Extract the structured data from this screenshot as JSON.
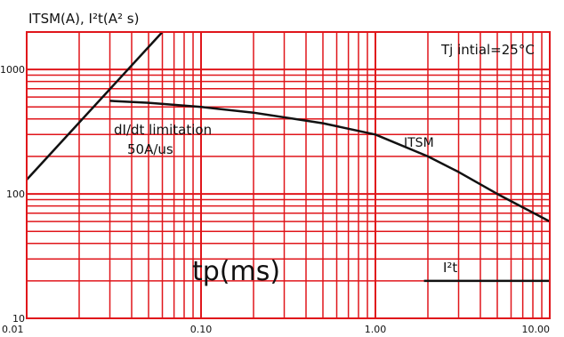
{
  "chart_data": {
    "type": "line",
    "title": "ITSM(A),  I²t(A² s)",
    "xlabel": "tp(ms)",
    "ylabel": "",
    "x_scale": "log",
    "y_scale": "log",
    "xlim": [
      0.01,
      10
    ],
    "ylim": [
      10,
      2000
    ],
    "x_ticks": [
      "0.01",
      "0.10",
      "1.00",
      "10.00"
    ],
    "y_ticks": [
      "10",
      "100",
      "1000"
    ],
    "grid": true,
    "grid_color": "#e0161b",
    "line_color": "#111111",
    "series": [
      {
        "name": "ITSM",
        "x": [
          0.03,
          0.05,
          0.1,
          0.2,
          0.5,
          1.0,
          2.0,
          3.0,
          5.0,
          10.0
        ],
        "y": [
          560,
          540,
          500,
          450,
          370,
          300,
          200,
          150,
          100,
          60
        ]
      },
      {
        "name": "I²t",
        "x": [
          1.9,
          10.0
        ],
        "y": [
          20,
          20
        ]
      },
      {
        "name": "dI/dt limitation",
        "x": [
          0.01,
          0.06
        ],
        "y": [
          130,
          2000
        ]
      }
    ],
    "annotations": [
      {
        "text": "Tj intial=25°C"
      },
      {
        "text": "dI/dt limitation"
      },
      {
        "text": "50A/us"
      },
      {
        "text": "ITSM"
      },
      {
        "text": "I²t"
      }
    ]
  }
}
